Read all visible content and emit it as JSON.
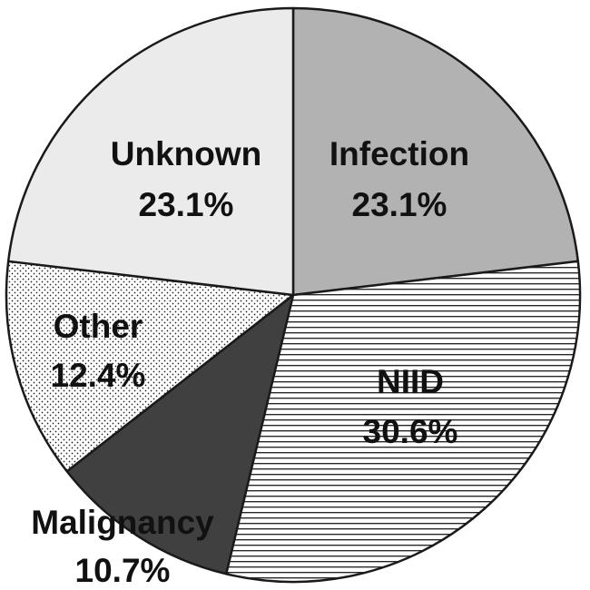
{
  "chart_data": {
    "type": "pie",
    "title": "",
    "start_angle_deg": 0,
    "direction": "clockwise",
    "slices": [
      {
        "label": "Infection",
        "value": 23.1,
        "value_text": "23.1%",
        "fill": "#b2b2b2",
        "pattern": "solid"
      },
      {
        "label": "NIID",
        "value": 30.6,
        "value_text": "30.6%",
        "fill": "#ffffff",
        "pattern": "horizontal-lines"
      },
      {
        "label": "Malignancy",
        "value": 10.7,
        "value_text": "10.7%",
        "fill": "#404040",
        "pattern": "solid"
      },
      {
        "label": "Other",
        "value": 12.4,
        "value_text": "12.4%",
        "fill": "#ffffff",
        "pattern": "dots"
      },
      {
        "label": "Unknown",
        "value": 23.1,
        "value_text": "23.1%",
        "fill": "#ebebeb",
        "pattern": "solid"
      }
    ],
    "outline_color": "#1a1a1a",
    "legend": "none"
  }
}
